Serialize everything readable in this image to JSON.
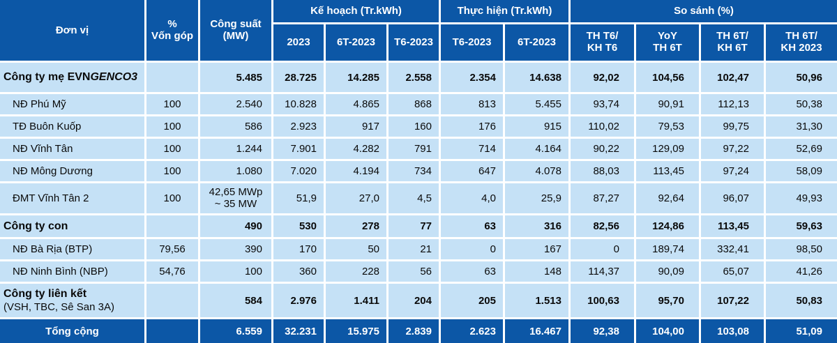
{
  "colors": {
    "header_bg": "#0C57A6",
    "row_bg": "#C5E1F6",
    "grid_line": "#FFFFFF",
    "header_text": "#FFFFFF",
    "body_text": "#0A0A0A"
  },
  "header": {
    "unit": "Đơn vị",
    "capital_l1": "%",
    "capital_l2": "Vốn góp",
    "capacity_l1": "Công suất",
    "capacity_l2": "(MW)",
    "plan_group": "Kế hoạch (Tr.kWh)",
    "actual_group": "Thực hiện (Tr.kWh)",
    "compare_group": "So sánh (%)",
    "plan_2023": "2023",
    "plan_6t": "6T-2023",
    "plan_t6": "T6-2023",
    "actual_t6": "T6-2023",
    "actual_6t": "6T-2023",
    "cmp1_l1": "TH T6/",
    "cmp1_l2": "KH T6",
    "cmp2_l1": "YoY",
    "cmp2_l2": "TH 6T",
    "cmp3_l1": "TH 6T/",
    "cmp3_l2": "KH 6T",
    "cmp4_l1": "TH 6T/",
    "cmp4_l2": "KH 2023"
  },
  "rows": [
    {
      "label": "Công ty mẹ EVN",
      "label_italic": "GENCO3",
      "capital": "",
      "capacity": "5.485",
      "p2023": "28.725",
      "p6t": "14.285",
      "pt6": "2.558",
      "at6": "2.354",
      "a6t": "14.638",
      "c1": "92,02",
      "c2": "104,56",
      "c3": "102,47",
      "c4": "50,96"
    },
    {
      "label": "NĐ Phú Mỹ",
      "capital": "100",
      "capacity": "2.540",
      "p2023": "10.828",
      "p6t": "4.865",
      "pt6": "868",
      "at6": "813",
      "a6t": "5.455",
      "c1": "93,74",
      "c2": "90,91",
      "c3": "112,13",
      "c4": "50,38"
    },
    {
      "label": "TĐ Buôn Kuốp",
      "capital": "100",
      "capacity": "586",
      "p2023": "2.923",
      "p6t": "917",
      "pt6": "160",
      "at6": "176",
      "a6t": "915",
      "c1": "110,02",
      "c2": "79,53",
      "c3": "99,75",
      "c4": "31,30"
    },
    {
      "label": "NĐ Vĩnh Tân",
      "capital": "100",
      "capacity": "1.244",
      "p2023": "7.901",
      "p6t": "4.282",
      "pt6": "791",
      "at6": "714",
      "a6t": "4.164",
      "c1": "90,22",
      "c2": "129,09",
      "c3": "97,22",
      "c4": "52,69"
    },
    {
      "label": "NĐ Mông Dương",
      "capital": "100",
      "capacity": "1.080",
      "p2023": "7.020",
      "p6t": "4.194",
      "pt6": "734",
      "at6": "647",
      "a6t": "4.078",
      "c1": "88,03",
      "c2": "113,45",
      "c3": "97,24",
      "c4": "58,09"
    },
    {
      "label": "ĐMT Vĩnh Tân 2",
      "capital": "100",
      "capacity_l1": "42,65 MWp",
      "capacity_l2": "~ 35 MW",
      "p2023": "51,9",
      "p6t": "27,0",
      "pt6": "4,5",
      "at6": "4,0",
      "a6t": "25,9",
      "c1": "87,27",
      "c2": "92,64",
      "c3": "96,07",
      "c4": "49,93"
    },
    {
      "label": "Công ty con",
      "capital": "",
      "capacity": "490",
      "p2023": "530",
      "p6t": "278",
      "pt6": "77",
      "at6": "63",
      "a6t": "316",
      "c1": "82,56",
      "c2": "124,86",
      "c3": "113,45",
      "c4": "59,63"
    },
    {
      "label": "NĐ Bà Rịa (BTP)",
      "capital": "79,56",
      "capacity": "390",
      "p2023": "170",
      "p6t": "50",
      "pt6": "21",
      "at6": "0",
      "a6t": "167",
      "c1": "0",
      "c2": "189,74",
      "c3": "332,41",
      "c4": "98,50"
    },
    {
      "label": "NĐ Ninh Bình (NBP)",
      "capital": "54,76",
      "capacity": "100",
      "p2023": "360",
      "p6t": "228",
      "pt6": "56",
      "at6": "63",
      "a6t": "148",
      "c1": "114,37",
      "c2": "90,09",
      "c3": "65,07",
      "c4": "41,26"
    },
    {
      "label": "Công ty liên kết",
      "sublabel": "(VSH, TBC, Sê San 3A)",
      "capital": "",
      "capacity": "584",
      "p2023": "2.976",
      "p6t": "1.411",
      "pt6": "204",
      "at6": "205",
      "a6t": "1.513",
      "c1": "100,63",
      "c2": "95,70",
      "c3": "107,22",
      "c4": "50,83"
    }
  ],
  "footer": {
    "label": "Tổng cộng",
    "capital": "",
    "capacity": "6.559",
    "p2023": "32.231",
    "p6t": "15.975",
    "pt6": "2.839",
    "at6": "2.623",
    "a6t": "16.467",
    "c1": "92,38",
    "c2": "104,00",
    "c3": "103,08",
    "c4": "51,09"
  },
  "chart_data": {
    "type": "table",
    "title": "",
    "column_groups": [
      "Kế hoạch (Tr.kWh)",
      "Thực hiện (Tr.kWh)",
      "So sánh (%)"
    ],
    "columns": [
      "Đơn vị",
      "% Vốn góp",
      "Công suất (MW)",
      "Kế hoạch 2023",
      "Kế hoạch 6T-2023",
      "Kế hoạch T6-2023",
      "Thực hiện T6-2023",
      "Thực hiện 6T-2023",
      "TH T6/KH T6",
      "YoY TH 6T",
      "TH 6T/KH 6T",
      "TH 6T/KH 2023"
    ],
    "rows": [
      [
        "Công ty mẹ EVNGENCO3",
        "",
        "5.485",
        "28.725",
        "14.285",
        "2.558",
        "2.354",
        "14.638",
        "92,02",
        "104,56",
        "102,47",
        "50,96"
      ],
      [
        "NĐ Phú Mỹ",
        "100",
        "2.540",
        "10.828",
        "4.865",
        "868",
        "813",
        "5.455",
        "93,74",
        "90,91",
        "112,13",
        "50,38"
      ],
      [
        "TĐ Buôn Kuốp",
        "100",
        "586",
        "2.923",
        "917",
        "160",
        "176",
        "915",
        "110,02",
        "79,53",
        "99,75",
        "31,30"
      ],
      [
        "NĐ Vĩnh Tân",
        "100",
        "1.244",
        "7.901",
        "4.282",
        "791",
        "714",
        "4.164",
        "90,22",
        "129,09",
        "97,22",
        "52,69"
      ],
      [
        "NĐ Mông Dương",
        "100",
        "1.080",
        "7.020",
        "4.194",
        "734",
        "647",
        "4.078",
        "88,03",
        "113,45",
        "97,24",
        "58,09"
      ],
      [
        "ĐMT Vĩnh Tân 2",
        "100",
        "42,65 MWp ~ 35 MW",
        "51,9",
        "27,0",
        "4,5",
        "4,0",
        "25,9",
        "87,27",
        "92,64",
        "96,07",
        "49,93"
      ],
      [
        "Công ty con",
        "",
        "490",
        "530",
        "278",
        "77",
        "63",
        "316",
        "82,56",
        "124,86",
        "113,45",
        "59,63"
      ],
      [
        "NĐ Bà Rịa (BTP)",
        "79,56",
        "390",
        "170",
        "50",
        "21",
        "0",
        "167",
        "0",
        "189,74",
        "332,41",
        "98,50"
      ],
      [
        "NĐ Ninh Bình (NBP)",
        "54,76",
        "100",
        "360",
        "228",
        "56",
        "63",
        "148",
        "114,37",
        "90,09",
        "65,07",
        "41,26"
      ],
      [
        "Công ty liên kết (VSH, TBC, Sê San 3A)",
        "",
        "584",
        "2.976",
        "1.411",
        "204",
        "205",
        "1.513",
        "100,63",
        "95,70",
        "107,22",
        "50,83"
      ],
      [
        "Tổng cộng",
        "",
        "6.559",
        "32.231",
        "15.975",
        "2.839",
        "2.623",
        "16.467",
        "92,38",
        "104,00",
        "103,08",
        "51,09"
      ]
    ]
  }
}
